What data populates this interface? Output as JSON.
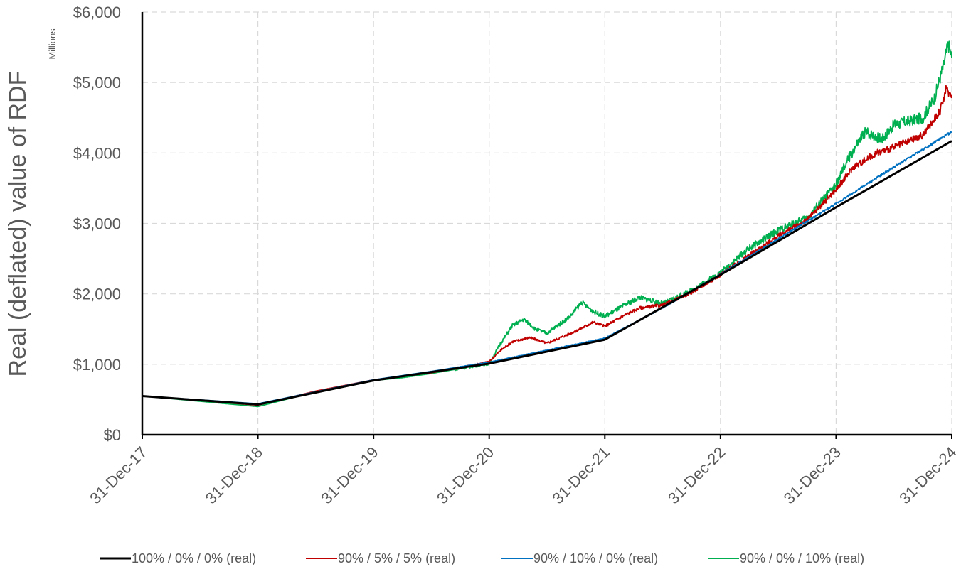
{
  "chart_data": {
    "type": "line",
    "title": "",
    "xlabel": "",
    "ylabel": "Real (deflated) value of RDF",
    "y_units_label": "Millions",
    "x_tick_labels": [
      "31-Dec-17",
      "31-Dec-18",
      "31-Dec-19",
      "31-Dec-20",
      "31-Dec-21",
      "31-Dec-22",
      "31-Dec-23",
      "31-Dec-24"
    ],
    "x_ticks": [
      2017,
      2018,
      2019,
      2020,
      2021,
      2022,
      2023,
      2024
    ],
    "xlim": [
      2017,
      2024
    ],
    "y_tick_labels": [
      "$0",
      "$1,000",
      "$2,000",
      "$3,000",
      "$4,000",
      "$5,000",
      "$6,000"
    ],
    "y_ticks": [
      0,
      1000,
      2000,
      3000,
      4000,
      5000,
      6000
    ],
    "ylim": [
      0,
      6000
    ],
    "grid": true,
    "legend_position": "bottom",
    "series": [
      {
        "name": "100% / 0% / 0% (real)",
        "color": "#000000",
        "x": [
          2017,
          2018,
          2019,
          2020,
          2021,
          2022,
          2023,
          2024
        ],
        "y": [
          550,
          430,
          770,
          1010,
          1350,
          2270,
          3230,
          4170
        ]
      },
      {
        "name": "90% / 5% / 5% (real)",
        "color": "#c00000",
        "x": [
          2017,
          2018,
          2018.5,
          2019,
          2019.25,
          2019.5,
          2019.75,
          2020,
          2020.1,
          2020.2,
          2020.35,
          2020.5,
          2020.75,
          2020.9,
          2021,
          2021.15,
          2021.3,
          2021.5,
          2021.75,
          2022,
          2022.25,
          2022.5,
          2022.75,
          2023,
          2023.15,
          2023.35,
          2023.5,
          2023.75,
          2023.9,
          2023.95,
          2024
        ],
        "y": [
          550,
          420,
          620,
          780,
          830,
          880,
          950,
          1040,
          1200,
          1320,
          1380,
          1300,
          1470,
          1600,
          1540,
          1680,
          1800,
          1840,
          2020,
          2270,
          2550,
          2820,
          3050,
          3480,
          3800,
          4000,
          4080,
          4250,
          4600,
          4900,
          4820
        ]
      },
      {
        "name": "90% / 10% / 0% (real)",
        "color": "#0070c0",
        "x": [
          2017,
          2018,
          2019,
          2019.5,
          2020,
          2020.5,
          2021,
          2021.5,
          2022,
          2022.5,
          2023,
          2023.5,
          2024
        ],
        "y": [
          550,
          440,
          780,
          900,
          1030,
          1200,
          1370,
          1800,
          2280,
          2780,
          3280,
          3800,
          4300
        ]
      },
      {
        "name": "90% / 0% / 10% (real)",
        "color": "#00b050",
        "x": [
          2017,
          2018,
          2018.5,
          2019,
          2019.25,
          2019.5,
          2019.75,
          2020,
          2020.1,
          2020.2,
          2020.3,
          2020.4,
          2020.5,
          2020.7,
          2020.8,
          2020.9,
          2021,
          2021.15,
          2021.3,
          2021.5,
          2021.75,
          2022,
          2022.25,
          2022.5,
          2022.75,
          2023,
          2023.1,
          2023.25,
          2023.4,
          2023.5,
          2023.75,
          2023.85,
          2023.93,
          2023.97,
          2024
        ],
        "y": [
          550,
          400,
          610,
          770,
          810,
          870,
          940,
          1010,
          1300,
          1550,
          1640,
          1500,
          1440,
          1680,
          1880,
          1750,
          1680,
          1820,
          1950,
          1860,
          2050,
          2300,
          2650,
          2900,
          3080,
          3550,
          3900,
          4300,
          4200,
          4400,
          4500,
          4780,
          5250,
          5550,
          5350
        ]
      }
    ]
  }
}
